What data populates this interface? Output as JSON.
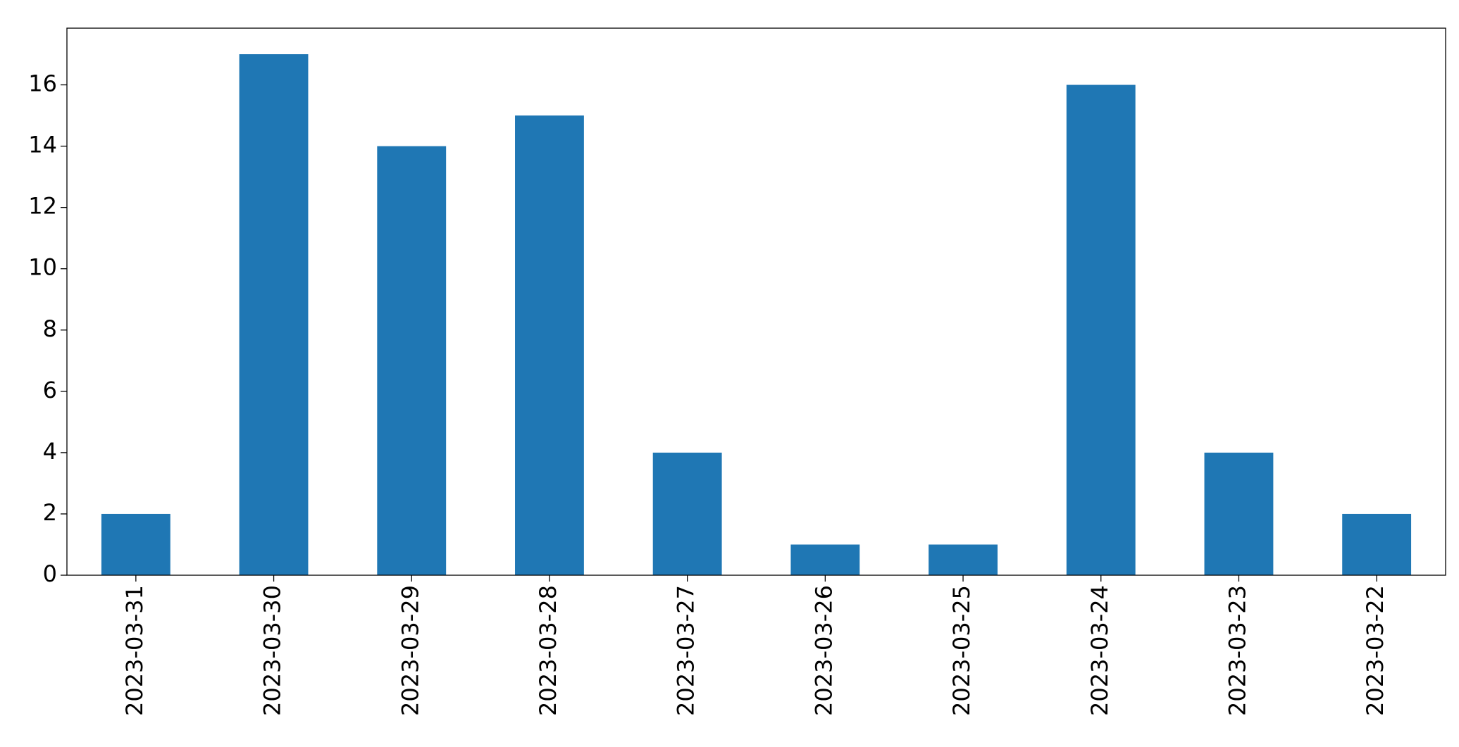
{
  "chart_data": {
    "type": "bar",
    "categories": [
      "2023-03-31",
      "2023-03-30",
      "2023-03-29",
      "2023-03-28",
      "2023-03-27",
      "2023-03-26",
      "2023-03-25",
      "2023-03-24",
      "2023-03-23",
      "2023-03-22"
    ],
    "values": [
      2,
      17,
      14,
      15,
      4,
      1,
      1,
      16,
      4,
      2
    ],
    "color": "#1f77b4",
    "ylim": [
      0,
      17.85
    ],
    "yticks": [
      0,
      2,
      4,
      6,
      8,
      10,
      12,
      14,
      16
    ],
    "grid": false
  }
}
